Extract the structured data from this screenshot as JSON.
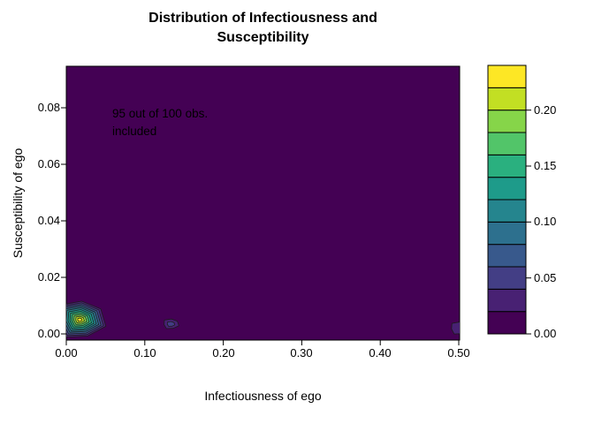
{
  "title_display": "Distribution of Infectiousness and\nSusceptibility",
  "chart_data": {
    "type": "heatmap",
    "subtype": "filled-contour-2d-density",
    "title": "Distribution of Infectiousness and Susceptibility",
    "xlabel": "Infectiousness of ego",
    "ylabel": "Susceptibility of ego",
    "annotation": "95 out of 100 obs.\nincluded",
    "xlim": [
      0,
      0.5
    ],
    "ylim": [
      0,
      0.095
    ],
    "zlim": [
      0,
      0.24
    ],
    "x_ticks": [
      "0.00",
      "0.10",
      "0.20",
      "0.30",
      "0.40",
      "0.50"
    ],
    "x_tick_values": [
      0,
      0.1,
      0.2,
      0.3,
      0.4,
      0.5
    ],
    "y_ticks": [
      "0.00",
      "0.02",
      "0.04",
      "0.06",
      "0.08"
    ],
    "y_tick_values": [
      0,
      0.02,
      0.04,
      0.06,
      0.08
    ],
    "grid": false,
    "legend_position": "right",
    "colorbar": {
      "ticks": [
        "0.00",
        "0.05",
        "0.10",
        "0.15",
        "0.20"
      ],
      "tick_values": [
        0,
        0.05,
        0.1,
        0.15,
        0.2
      ],
      "level_step": 0.02
    },
    "palette": [
      "#440154",
      "#482173",
      "#433e85",
      "#38598c",
      "#2d708e",
      "#25858e",
      "#1e9b8a",
      "#2ab07f",
      "#52c569",
      "#86d549",
      "#c2df23",
      "#fde725"
    ],
    "plot_bg": "#440154",
    "contour_line_color": "#1c1c1c",
    "axis_color": "#000000",
    "peaks": [
      {
        "cx": 0.017,
        "cy": 0.005,
        "rx": 0.035,
        "ry": 0.0075,
        "levels": 11,
        "peak_density": 0.23
      },
      {
        "cx": 0.133,
        "cy": 0.0035,
        "rx": 0.011,
        "ry": 0.002,
        "levels": 2,
        "peak_density": 0.04
      },
      {
        "cx": 0.5,
        "cy": 0.002,
        "rx": 0.012,
        "ry": 0.0025,
        "levels": 1,
        "peak_density": 0.02
      }
    ]
  }
}
